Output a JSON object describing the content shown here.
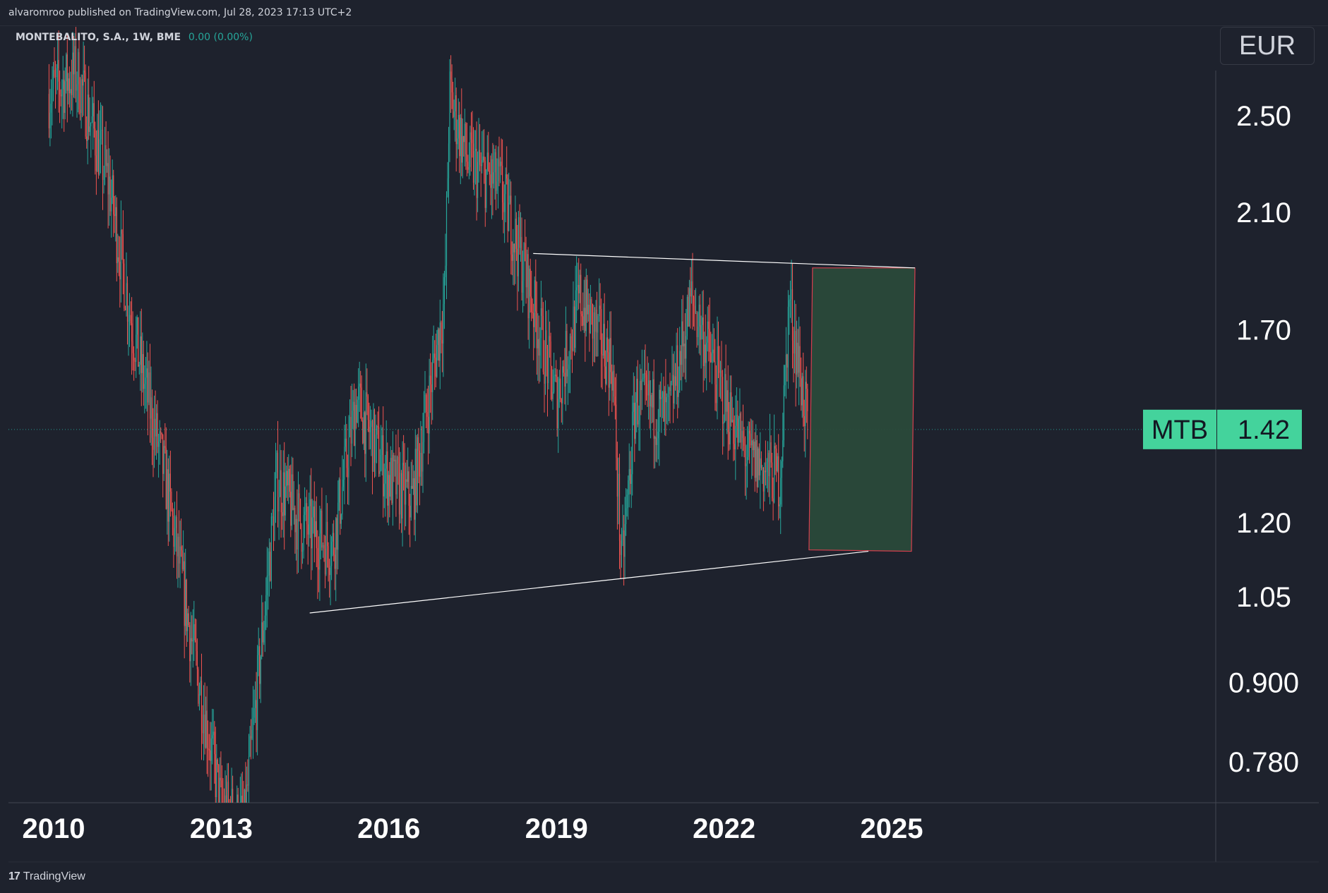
{
  "header": {
    "publisher": "alvaromroo published on TradingView.com, Jul 28, 2023 17:13 UTC+2"
  },
  "symbol": {
    "name": "MONTEBALITO, S.A., 1W, BME",
    "change": "0.00 (0.00%)",
    "ticker": "MTB",
    "last_price": "1.42"
  },
  "currency": "EUR",
  "footer": {
    "logo_mark": "17",
    "brand": "TradingView"
  },
  "colors": {
    "background": "#1e222d",
    "up": "#26a69a",
    "down": "#ef5350",
    "trendline": "#ffffff",
    "box_fill": "#2a4a3a",
    "box_border": "#e04050",
    "badge": "#44d39c"
  },
  "chart_data": {
    "type": "candlestick",
    "title": "",
    "xlabel": "",
    "ylabel": "",
    "y_scale": "log",
    "x_ticks": [
      "2010",
      "2013",
      "2016",
      "2019",
      "2022",
      "2025"
    ],
    "y_ticks": [
      "2.50",
      "2.10",
      "1.70",
      "1.20",
      "1.05",
      "0.900",
      "0.780"
    ],
    "last_value": 1.42,
    "x": [
      "2009-12",
      "2010-06",
      "2011-01",
      "2011-06",
      "2012-01",
      "2012-06",
      "2013-01",
      "2013-06",
      "2014-01",
      "2014-06",
      "2015-01",
      "2015-06",
      "2016-01",
      "2016-06",
      "2017-01",
      "2017-02",
      "2017-06",
      "2018-01",
      "2018-06",
      "2019-01",
      "2019-06",
      "2020-01",
      "2020-03",
      "2020-06",
      "2021-01",
      "2021-06",
      "2022-01",
      "2022-06",
      "2023-01",
      "2023-03",
      "2023-07"
    ],
    "close": [
      2.6,
      2.7,
      2.2,
      1.7,
      1.3,
      1.0,
      0.72,
      0.7,
      1.3,
      1.2,
      1.15,
      1.5,
      1.3,
      1.25,
      1.8,
      2.6,
      2.3,
      2.2,
      1.9,
      1.5,
      1.8,
      1.6,
      1.1,
      1.5,
      1.45,
      1.8,
      1.5,
      1.35,
      1.3,
      1.8,
      1.42
    ],
    "trendlines": [
      {
        "from": [
          "2018-08",
          1.95
        ],
        "to": [
          "2025-06",
          1.9
        ]
      },
      {
        "from": [
          "2014-08",
          1.02
        ],
        "to": [
          "2024-08",
          1.14
        ]
      }
    ],
    "projection_box": {
      "x_from": "2023-08",
      "x_to": "2025-06",
      "y_from": 1.14,
      "y_to": 1.9
    },
    "grid": false,
    "legend": "none"
  }
}
